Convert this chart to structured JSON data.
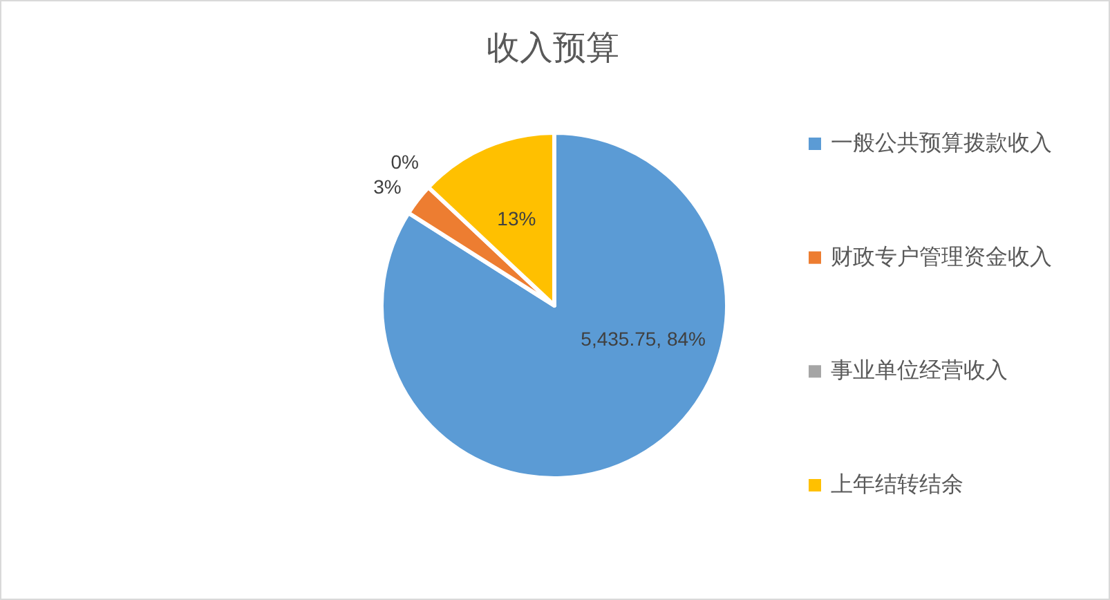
{
  "chart_data": {
    "type": "pie",
    "title": "收入预算",
    "categories": [
      "一般公共预算拨款收入",
      "财政专户管理资金收入",
      "事业单位经营收入",
      "上年结转结余"
    ],
    "values": [
      84,
      3,
      0,
      13
    ],
    "colors": [
      "#5b9bd5",
      "#ed7d31",
      "#a5a5a5",
      "#ffc000"
    ],
    "value_labels": [
      "5,435.75, 84%",
      "3%",
      "0%",
      "13%"
    ],
    "legend": "right"
  }
}
